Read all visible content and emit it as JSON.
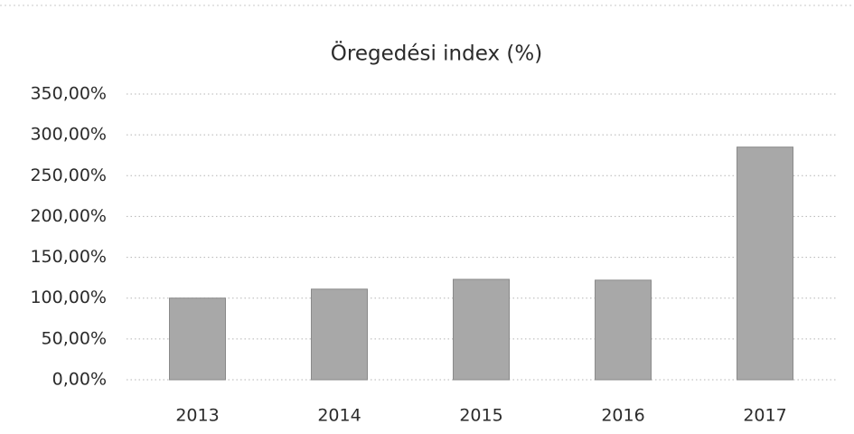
{
  "chart_data": {
    "type": "bar",
    "title": "Öregedési index (%)",
    "categories": [
      "2013",
      "2014",
      "2015",
      "2016",
      "2017"
    ],
    "values": [
      100,
      111,
      123,
      122,
      285
    ],
    "color": "#a8a8a8",
    "ylim": [
      0,
      350
    ],
    "yticks": [
      {
        "value": 0,
        "label": "0,00%"
      },
      {
        "value": 50,
        "label": "50,00%"
      },
      {
        "value": 100,
        "label": "100,00%"
      },
      {
        "value": 150,
        "label": "150,00%"
      },
      {
        "value": 200,
        "label": "200,00%"
      },
      {
        "value": 250,
        "label": "250,00%"
      },
      {
        "value": 300,
        "label": "300,00%"
      },
      {
        "value": 350,
        "label": "350,00%"
      }
    ],
    "grid": true
  }
}
